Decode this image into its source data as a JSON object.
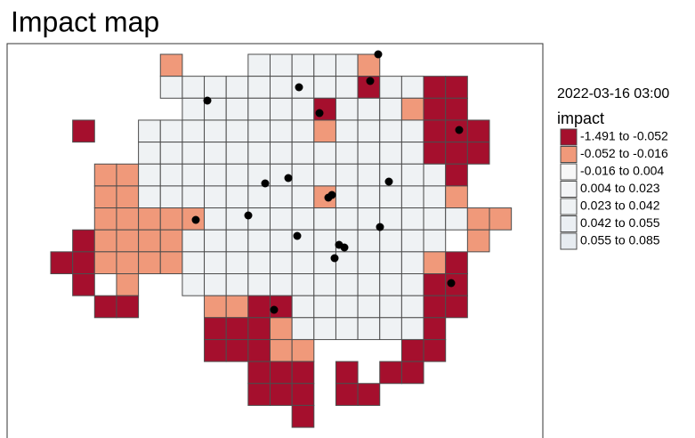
{
  "header": {
    "title": "Impact map"
  },
  "legend": {
    "subtitle": "2022-03-16 03:00",
    "title": "impact",
    "items": [
      {
        "label": "-1.491 to -0.052",
        "color": "#a50f2d"
      },
      {
        "label": "-0.052 to -0.016",
        "color": "#f0997a"
      },
      {
        "label": "-0.016 to 0.004",
        "color": "#f7f7f7"
      },
      {
        "label": "0.004 to 0.023",
        "color": "#f3f4f6"
      },
      {
        "label": "0.023 to 0.042",
        "color": "#eff2f4"
      },
      {
        "label": "0.042 to 0.055",
        "color": "#ebeff3"
      },
      {
        "label": "0.055 to 0.085",
        "color": "#e7ecf1"
      }
    ]
  }
}
